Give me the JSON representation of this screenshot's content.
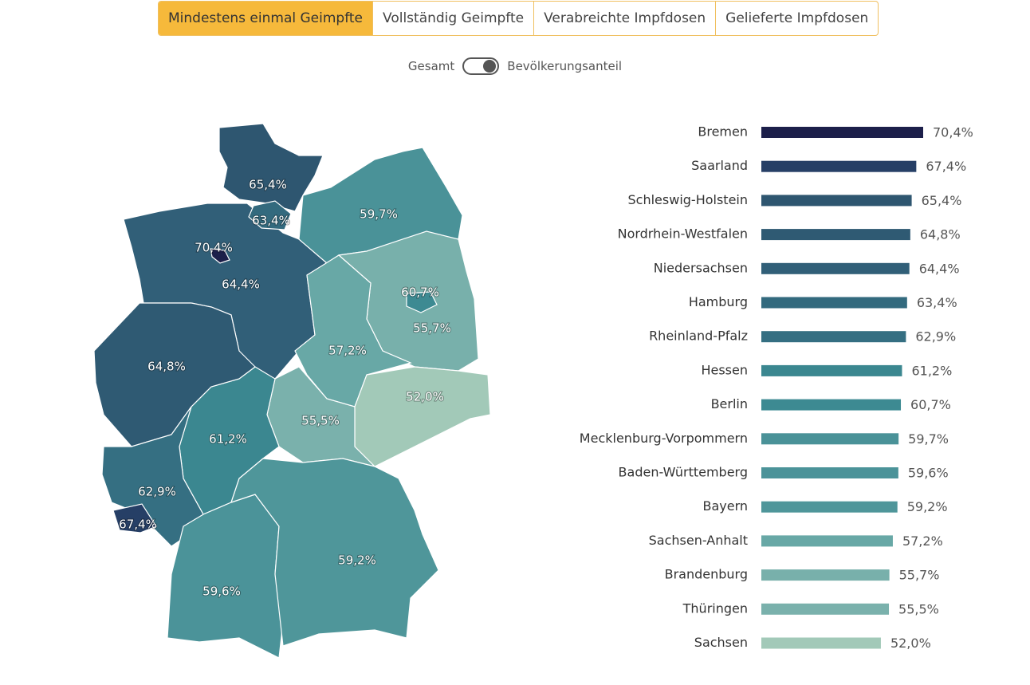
{
  "tabs": [
    "Mindestens einmal Geimpfte",
    "Vollständig Geimpfte",
    "Verabreichte Impfdosen",
    "Gelieferte Impfdosen"
  ],
  "toggle": {
    "left": "Gesamt",
    "right": "Bevölkerungsanteil"
  },
  "chart_data": {
    "type": "bar",
    "orientation": "horizontal",
    "categories": [
      "Bremen",
      "Saarland",
      "Schleswig-Holstein",
      "Nordrhein-Westfalen",
      "Niedersachsen",
      "Hamburg",
      "Rheinland-Pfalz",
      "Hessen",
      "Berlin",
      "Mecklenburg-Vorpommern",
      "Baden-Württemberg",
      "Bayern",
      "Sachsen-Anhalt",
      "Brandenburg",
      "Thüringen",
      "Sachsen"
    ],
    "values": [
      70.4,
      67.4,
      65.4,
      64.8,
      64.4,
      63.4,
      62.9,
      61.2,
      60.7,
      59.7,
      59.6,
      59.2,
      57.2,
      55.7,
      55.5,
      52.0
    ],
    "value_labels": [
      "70,4%",
      "67,4%",
      "65,4%",
      "64,8%",
      "64,4%",
      "63,4%",
      "62,9%",
      "61,2%",
      "60,7%",
      "59,7%",
      "59,6%",
      "59,2%",
      "57,2%",
      "55,7%",
      "55,5%",
      "52,0%"
    ],
    "colors": [
      "#1c1f4a",
      "#263f66",
      "#2e5670",
      "#2f5a73",
      "#315f78",
      "#336a7e",
      "#356f82",
      "#3b8790",
      "#3d8a92",
      "#4a9298",
      "#4b9399",
      "#4f969a",
      "#68a8a6",
      "#78b0ab",
      "#7ab1ac",
      "#a2c9b8"
    ]
  }
}
